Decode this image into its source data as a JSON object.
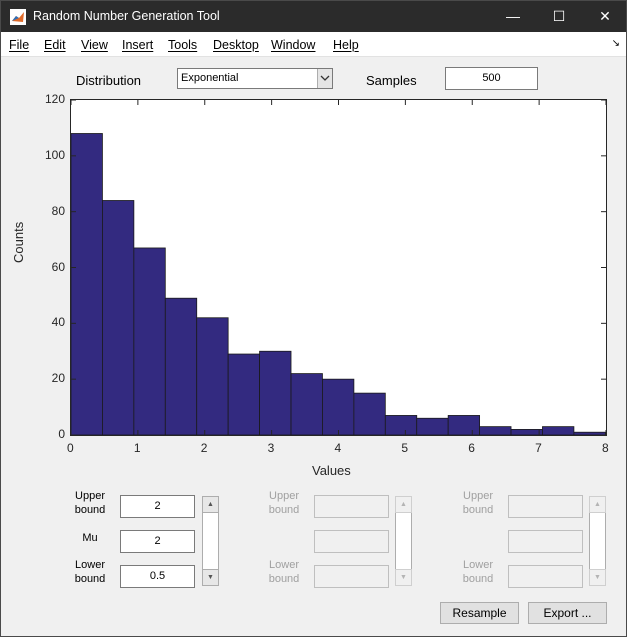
{
  "window": {
    "title": "Random Number Generation Tool"
  },
  "menu": [
    "File",
    "Edit",
    "View",
    "Insert",
    "Tools",
    "Desktop",
    "Window",
    "Help"
  ],
  "controls": {
    "distribution_label": "Distribution",
    "distribution_value": "Exponential",
    "samples_label": "Samples",
    "samples_value": "500"
  },
  "chart_data": {
    "type": "bar",
    "xlabel": "Values",
    "ylabel": "Counts",
    "xlim": [
      0,
      8
    ],
    "ylim": [
      0,
      120
    ],
    "xticks": [
      0,
      1,
      2,
      3,
      4,
      5,
      6,
      7,
      8
    ],
    "yticks": [
      0,
      20,
      40,
      60,
      80,
      100,
      120
    ],
    "bin_width": 0.47,
    "values": [
      108,
      84,
      67,
      49,
      42,
      29,
      30,
      22,
      20,
      15,
      7,
      6,
      7,
      3,
      2,
      3,
      1
    ],
    "bar_color": "#332a80"
  },
  "params": {
    "group1": {
      "upper_label": "Upper bound",
      "upper_value": "2",
      "mid_label": "Mu",
      "mid_value": "2",
      "lower_label": "Lower bound",
      "lower_value": "0.5"
    },
    "group2": {
      "upper_label": "Upper bound",
      "lower_label": "Lower bound"
    },
    "group3": {
      "upper_label": "Upper bound",
      "lower_label": "Lower bound"
    }
  },
  "buttons": {
    "resample": "Resample",
    "export": "Export ..."
  }
}
